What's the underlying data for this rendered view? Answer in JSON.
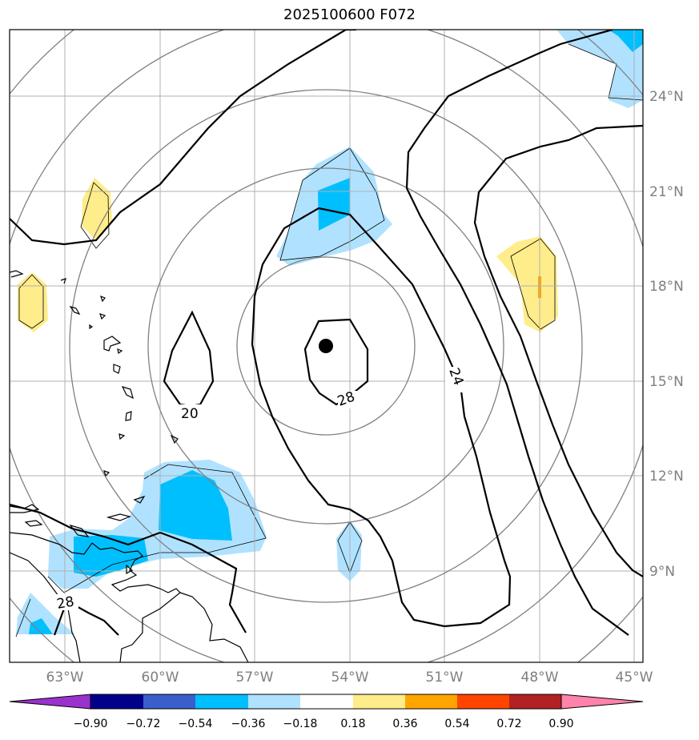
{
  "title": "2025100600 F072",
  "map": {
    "longitude_ticks": [
      "63°W",
      "60°W",
      "57°W",
      "54°W",
      "51°W",
      "48°W",
      "45°W"
    ],
    "latitude_ticks": [
      "24°N",
      "21°N",
      "18°N",
      "15°N",
      "12°N",
      "9°N"
    ],
    "contour_labels": [
      "20",
      "28",
      "24",
      "28"
    ],
    "center_marker": "storm-center-dot",
    "colors": {
      "contour": "#000000",
      "range_rings": "#808080",
      "gridlines": "#b0b0b0",
      "coastline": "#000000"
    }
  },
  "colorbar": {
    "tick_labels": [
      "−0.90",
      "−0.72",
      "−0.54",
      "−0.36",
      "−0.18",
      "0.18",
      "0.36",
      "0.54",
      "0.72",
      "0.90"
    ],
    "colors": [
      "#9a32cd",
      "#00008b",
      "#3a5fcd",
      "#00bfff",
      "#b0e2ff",
      "#ffffff",
      "#ffec8b",
      "#ffa500",
      "#ff4500",
      "#b22222",
      "#ff83aa"
    ]
  }
}
